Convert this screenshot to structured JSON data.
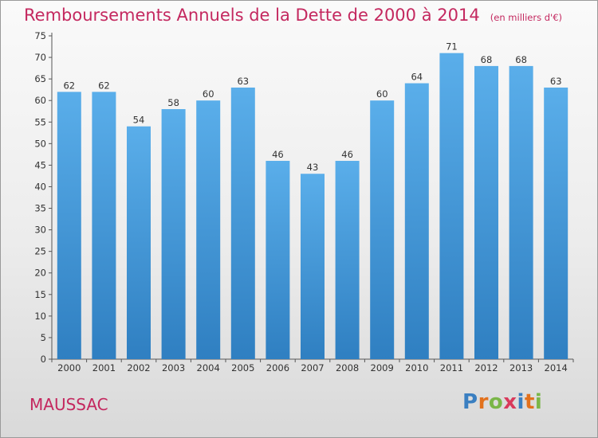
{
  "header": {
    "title": "Remboursements Annuels de la Dette de 2000 à 2014",
    "unit": "(en milliers d'€)"
  },
  "footer": {
    "town": "MAUSSAC",
    "logo": [
      "P",
      "r",
      "o",
      "x",
      "i",
      "t",
      "i"
    ],
    "logo_colors": [
      "#3a7fc1",
      "#e2711d",
      "#7ab648",
      "#d93a5c",
      "#3a7fc1",
      "#e2711d",
      "#7ab648"
    ]
  },
  "colors": {
    "bar_top": "#5aaeea",
    "bar_bottom": "#2f7fc1",
    "title": "#c4285f"
  },
  "chart_data": {
    "type": "bar",
    "title": "Remboursements Annuels de la Dette de 2000 à 2014",
    "categories": [
      "2000",
      "2001",
      "2002",
      "2003",
      "2004",
      "2005",
      "2006",
      "2007",
      "2008",
      "2009",
      "2010",
      "2011",
      "2012",
      "2013",
      "2014"
    ],
    "values": [
      62,
      62,
      54,
      58,
      60,
      63,
      46,
      43,
      46,
      60,
      64,
      71,
      68,
      68,
      63
    ],
    "yticks": [
      0,
      5,
      10,
      15,
      20,
      25,
      30,
      35,
      40,
      45,
      50,
      55,
      60,
      65,
      70,
      75
    ],
    "ylim": [
      0,
      75
    ],
    "grid": false,
    "legend": "none"
  }
}
